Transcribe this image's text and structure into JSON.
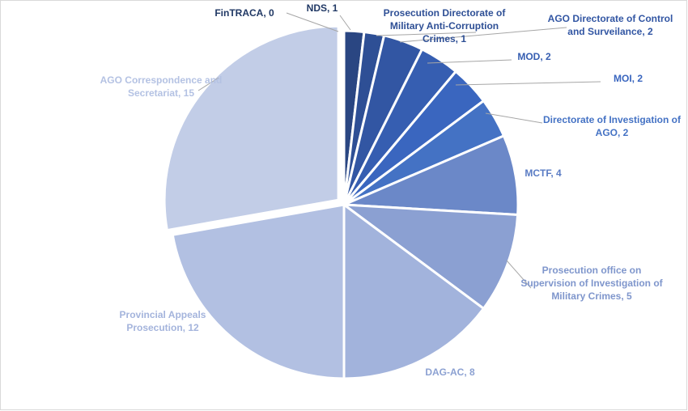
{
  "chart_data": {
    "type": "pie",
    "title": "",
    "legend": "none",
    "data_labels": "category-name-and-value",
    "slices": [
      {
        "label": "FinTRACA",
        "value": 0,
        "color": "#203864",
        "label_lines": [
          "FinTRACA, 0"
        ]
      },
      {
        "label": "NDS",
        "value": 1,
        "color": "#2a4682",
        "label_lines": [
          "NDS, 1"
        ]
      },
      {
        "label": "Prosecution Directorate of Military Anti-Corruption Crimes",
        "value": 1,
        "color": "#2e4f95",
        "label_lines": [
          "Prosecution Directorate of",
          "Military Anti-Corruption",
          "Crimes, 1"
        ]
      },
      {
        "label": "AGO Directorate of Control and Surveilance",
        "value": 2,
        "color": "#3256a3",
        "label_lines": [
          "AGO Directorate of Control",
          "and Surveilance, 2"
        ]
      },
      {
        "label": "MOD",
        "value": 2,
        "color": "#365eb1",
        "label_lines": [
          "MOD, 2"
        ]
      },
      {
        "label": "MOI",
        "value": 2,
        "color": "#3a66bf",
        "label_lines": [
          "MOI, 2"
        ]
      },
      {
        "label": "Directorate of Investigation of AGO",
        "value": 2,
        "color": "#4472c4",
        "label_lines": [
          "Directorate of Investigation of",
          "AGO, 2"
        ]
      },
      {
        "label": "MCTF",
        "value": 4,
        "color": "#6b88c8",
        "label_lines": [
          "MCTF, 4"
        ]
      },
      {
        "label": "Prosecution office on Supervision of Investigation of Military Crimes",
        "value": 5,
        "color": "#8ba0d2",
        "label_lines": [
          "Prosecution office on",
          "Supervision of Investigation of",
          "Military Crimes, 5"
        ]
      },
      {
        "label": "DAG-AC",
        "value": 8,
        "color": "#a2b3dc",
        "label_lines": [
          "DAG-AC, 8"
        ]
      },
      {
        "label": "Provincial Appeals Prosecution",
        "value": 12,
        "color": "#b2c0e2",
        "label_lines": [
          "Provincial Appeals",
          "Prosecution, 12"
        ]
      },
      {
        "label": "AGO Correspondence and Secretariat",
        "value": 15,
        "color": "#c2cde7",
        "label_lines": [
          "AGO Correspondence and",
          "Secretariat, 15"
        ]
      }
    ]
  }
}
